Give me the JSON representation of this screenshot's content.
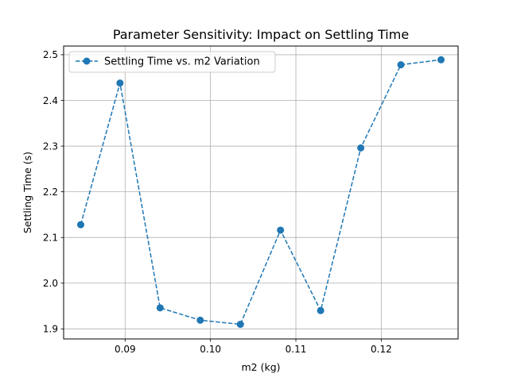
{
  "chart_data": {
    "type": "line",
    "title": "Parameter Sensitivity: Impact on Settling Time",
    "xlabel": "m2 (kg)",
    "ylabel": "Settling Time (s)",
    "xlim": [
      0.0828,
      0.129
    ],
    "ylim": [
      1.878,
      2.519
    ],
    "xticks": [
      0.09,
      0.1,
      0.11,
      0.12
    ],
    "xtick_labels": [
      "0.09",
      "0.10",
      "0.11",
      "0.12"
    ],
    "yticks": [
      1.9,
      2.0,
      2.1,
      2.2,
      2.3,
      2.4,
      2.5
    ],
    "ytick_labels": [
      "1.9",
      "2.0",
      "2.1",
      "2.2",
      "2.3",
      "2.4",
      "2.5"
    ],
    "grid": true,
    "legend_position": "upper-left",
    "series": [
      {
        "name": "Settling Time vs. m2 Variation",
        "color": "#1f77b4",
        "line_style": "dashed",
        "marker": "circle",
        "x": [
          0.0848,
          0.0894,
          0.0941,
          0.0988,
          0.1035,
          0.1082,
          0.1129,
          0.1176,
          0.1223,
          0.127
        ],
        "y": [
          2.128,
          2.438,
          1.946,
          1.919,
          1.91,
          2.116,
          1.94,
          2.296,
          2.478,
          2.489
        ]
      }
    ]
  }
}
